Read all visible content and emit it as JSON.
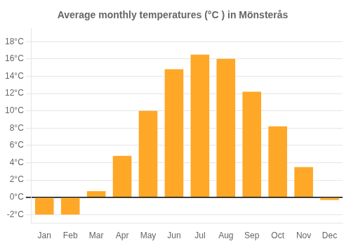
{
  "chart_data": {
    "type": "bar",
    "title": "Average monthly temperatures (°C ) in Mönsterås",
    "categories": [
      "Jan",
      "Feb",
      "Mar",
      "Apr",
      "May",
      "Jun",
      "Jul",
      "Aug",
      "Sep",
      "Oct",
      "Nov",
      "Dec"
    ],
    "values": [
      -2.0,
      -2.0,
      0.7,
      4.8,
      10.0,
      14.8,
      16.5,
      16.0,
      12.2,
      8.2,
      3.5,
      -0.3
    ],
    "color": "#FFA726",
    "ylim": [
      -3.0,
      19.5
    ],
    "yticks": [
      {
        "value": -2,
        "label": "-2°C"
      },
      {
        "value": 0,
        "label": "0°C"
      },
      {
        "value": 2,
        "label": "2°C"
      },
      {
        "value": 4,
        "label": "4°C"
      },
      {
        "value": 6,
        "label": "6°C"
      },
      {
        "value": 8,
        "label": "8°C"
      },
      {
        "value": 10,
        "label": "10°C"
      },
      {
        "value": 12,
        "label": "12°C"
      },
      {
        "value": 14,
        "label": "14°C"
      },
      {
        "value": 16,
        "label": "16°C"
      },
      {
        "value": 18,
        "label": "18°C"
      }
    ],
    "grid": true
  }
}
